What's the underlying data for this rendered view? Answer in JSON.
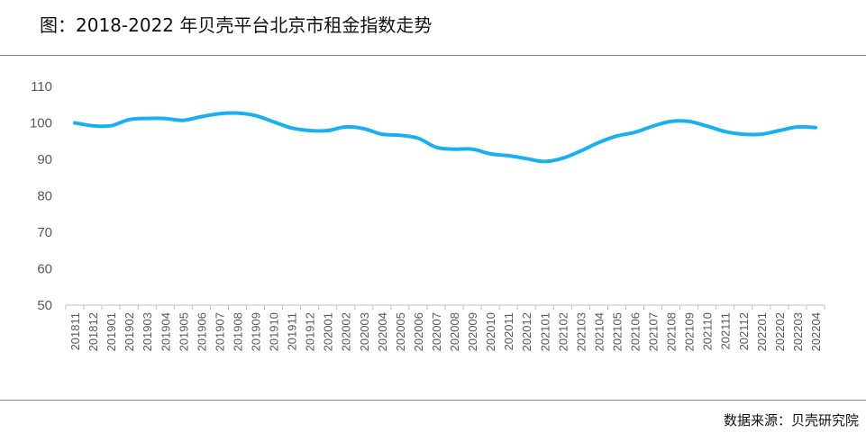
{
  "title": "图：2018-2022 年贝壳平台北京市租金指数走势",
  "source": "数据来源：贝壳研究院",
  "colors": {
    "line": "#1ab0f0",
    "axis": "#bfbfbf",
    "tick_text": "#595959",
    "rule": "#8a8a8a"
  },
  "chart_data": {
    "type": "line",
    "title": "",
    "xlabel": "",
    "ylabel": "",
    "ylim": [
      50,
      110
    ],
    "yticks": [
      50,
      60,
      70,
      80,
      90,
      100,
      110
    ],
    "grid": false,
    "categories": [
      "201811",
      "201812",
      "201901",
      "201902",
      "201903",
      "201904",
      "201905",
      "201906",
      "201907",
      "201908",
      "201909",
      "201910",
      "201911",
      "201912",
      "202001",
      "202002",
      "202003",
      "202004",
      "202005",
      "202006",
      "202007",
      "202008",
      "202009",
      "202010",
      "202011",
      "202012",
      "202101",
      "202102",
      "202103",
      "202104",
      "202105",
      "202106",
      "202107",
      "202108",
      "202109",
      "202110",
      "202111",
      "202112",
      "202201",
      "202202",
      "202203",
      "202204"
    ],
    "series": [
      {
        "values": [
          100.0,
          99.2,
          99.2,
          100.9,
          101.2,
          101.2,
          100.7,
          101.7,
          102.5,
          102.7,
          102.0,
          100.3,
          98.6,
          97.9,
          97.9,
          98.9,
          98.4,
          96.9,
          96.6,
          95.8,
          93.3,
          92.8,
          92.8,
          91.5,
          91.0,
          90.2,
          89.4,
          90.3,
          92.3,
          94.6,
          96.4,
          97.4,
          99.1,
          100.4,
          100.4,
          99.1,
          97.6,
          96.9,
          96.9,
          97.9,
          98.9,
          98.7
        ]
      }
    ]
  }
}
